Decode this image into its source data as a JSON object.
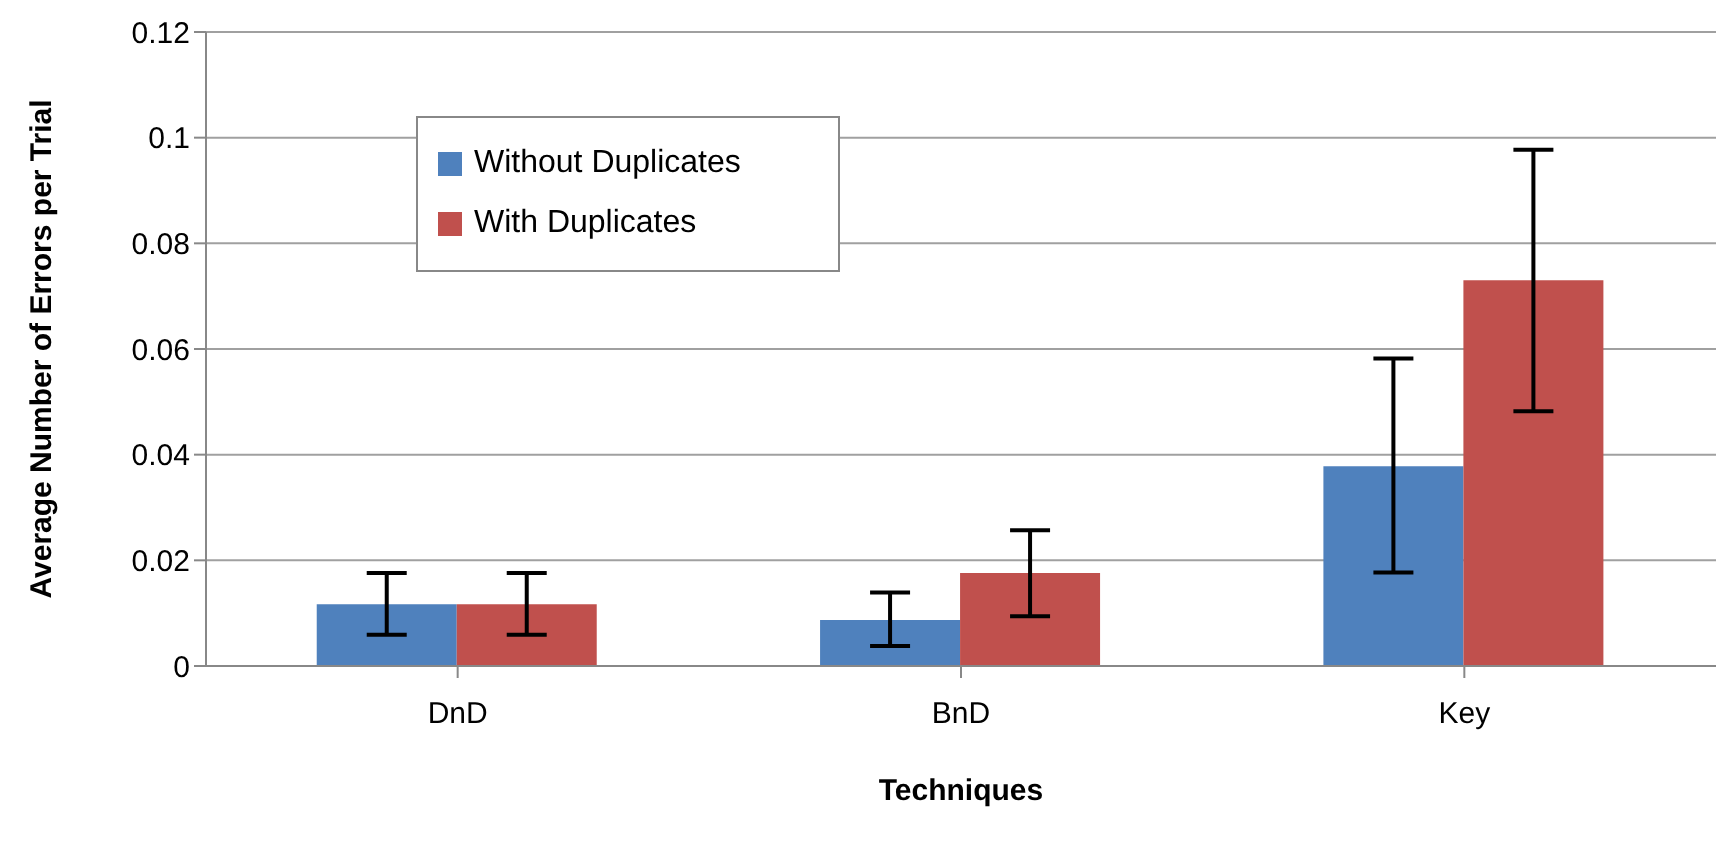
{
  "chart_data": {
    "type": "bar",
    "xlabel": "Techniques",
    "ylabel": "Average Number of Errors per  Trial",
    "categories": [
      "DnD",
      "BnD",
      "Key"
    ],
    "series": [
      {
        "name": "Without Duplicates",
        "color": "#4f81bd",
        "values": [
          0.0117,
          0.0087,
          0.0378
        ],
        "errors": [
          [
            0.0059,
            0.0176
          ],
          [
            0.0038,
            0.0139
          ],
          [
            0.0177,
            0.0582
          ]
        ]
      },
      {
        "name": "With Duplicates",
        "color": "#c0504d",
        "values": [
          0.0117,
          0.0176,
          0.073
        ],
        "errors": [
          [
            0.0059,
            0.0176
          ],
          [
            0.0094,
            0.0257
          ],
          [
            0.0482,
            0.0977
          ]
        ]
      }
    ],
    "ylim": [
      0,
      0.12
    ],
    "yticks": [
      0,
      0.02,
      0.04,
      0.06,
      0.08,
      0.1,
      0.12
    ],
    "grid": "y",
    "legend": "top left"
  }
}
